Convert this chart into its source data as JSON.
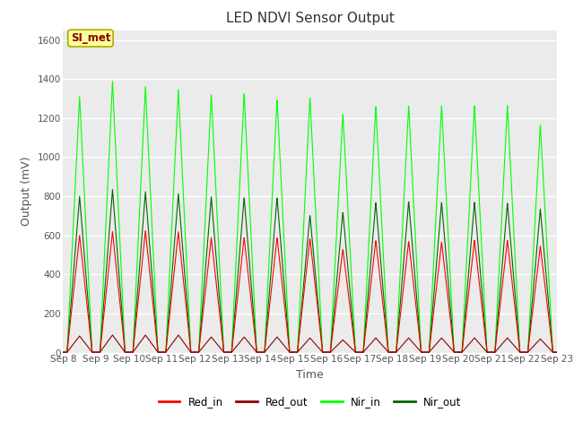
{
  "title": "LED NDVI Sensor Output",
  "xlabel": "Time",
  "ylabel": "Output (mV)",
  "ylim": [
    0,
    1650
  ],
  "yticks": [
    0,
    200,
    400,
    600,
    800,
    1000,
    1200,
    1400,
    1600
  ],
  "plot_bg_color": "#ebebeb",
  "legend_labels": [
    "Red_in",
    "Red_out",
    "Nir_in",
    "Nir_out"
  ],
  "legend_colors": [
    "#ff0000",
    "#8b0000",
    "#00ff00",
    "#006400"
  ],
  "annotation_text": "SI_met",
  "annotation_color": "#8b0000",
  "annotation_bg": "#ffff99",
  "xtick_labels": [
    "Sep 8",
    "Sep 9",
    "Sep 10",
    "Sep 11",
    "Sep 12",
    "Sep 13",
    "Sep 14",
    "Sep 15",
    "Sep 16",
    "Sep 17",
    "Sep 18",
    "Sep 19",
    "Sep 20",
    "Sep 21",
    "Sep 22",
    "Sep 23"
  ],
  "num_cycles": 15,
  "red_in_peaks": [
    600,
    620,
    625,
    620,
    590,
    590,
    590,
    585,
    530,
    575,
    570,
    565,
    575,
    575,
    545
  ],
  "red_out_peaks": [
    85,
    90,
    90,
    90,
    80,
    80,
    80,
    75,
    65,
    75,
    75,
    75,
    75,
    75,
    70
  ],
  "nir_in_peaks": [
    1310,
    1390,
    1365,
    1350,
    1325,
    1330,
    1300,
    1310,
    1225,
    1265,
    1265,
    1265,
    1265,
    1265,
    1165
  ],
  "nir_out_peaks": [
    800,
    835,
    825,
    815,
    800,
    795,
    795,
    705,
    720,
    770,
    775,
    770,
    770,
    765,
    735
  ],
  "figsize": [
    6.4,
    4.8
  ],
  "dpi": 100
}
